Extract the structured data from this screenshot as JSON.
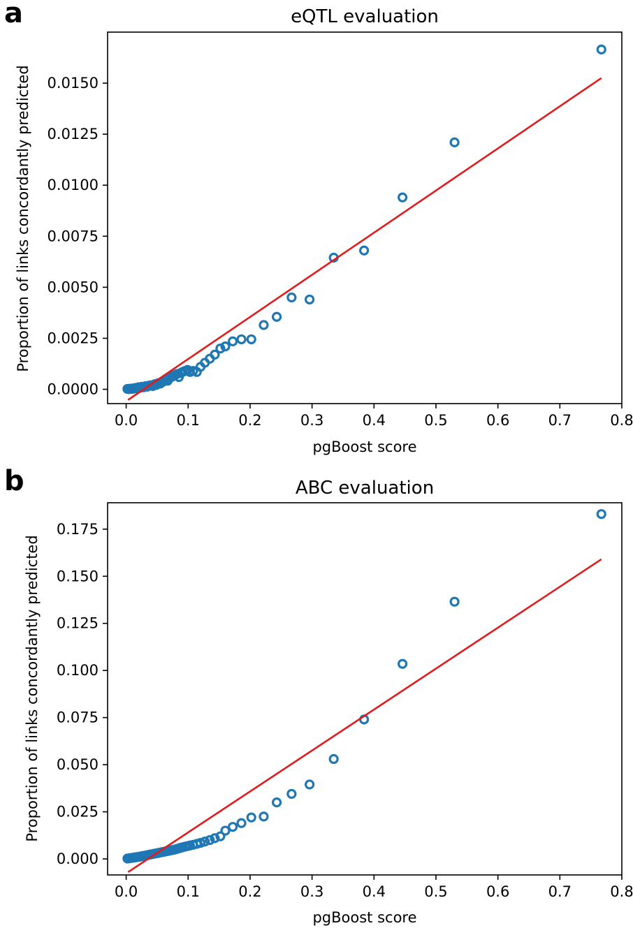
{
  "figure": {
    "panels": [
      "a",
      "b"
    ]
  },
  "chart_data": [
    {
      "type": "scatter",
      "panel_label": "a",
      "title": "eQTL evaluation",
      "xlabel": "pgBoost score",
      "ylabel": "Proportion of links concordantly predicted",
      "xlim": [
        -0.03,
        0.8
      ],
      "ylim": [
        -0.0007,
        0.0175
      ],
      "xticks": [
        0.0,
        0.1,
        0.2,
        0.3,
        0.4,
        0.5,
        0.6,
        0.7,
        0.8
      ],
      "xtick_labels": [
        "0.0",
        "0.1",
        "0.2",
        "0.3",
        "0.4",
        "0.5",
        "0.6",
        "0.7",
        "0.8"
      ],
      "yticks": [
        0.0,
        0.0025,
        0.005,
        0.0075,
        0.01,
        0.0125,
        0.015
      ],
      "ytick_labels": [
        "0.0000",
        "0.0025",
        "0.0050",
        "0.0075",
        "0.0100",
        "0.0125",
        "0.0150"
      ],
      "grid": false,
      "points": {
        "x": [
          0.002,
          0.004,
          0.006,
          0.008,
          0.01,
          0.012,
          0.014,
          0.016,
          0.018,
          0.02,
          0.022,
          0.025,
          0.028,
          0.031,
          0.034,
          0.037,
          0.04,
          0.043,
          0.046,
          0.049,
          0.052,
          0.055,
          0.058,
          0.061,
          0.064,
          0.067,
          0.07,
          0.073,
          0.076,
          0.079,
          0.082,
          0.085,
          0.088,
          0.091,
          0.095,
          0.099,
          0.103,
          0.108,
          0.114,
          0.12,
          0.127,
          0.135,
          0.143,
          0.152,
          0.16,
          0.172,
          0.186,
          0.202,
          0.222,
          0.243,
          0.267,
          0.296,
          0.335,
          0.384,
          0.446,
          0.53,
          0.767
        ],
        "y": [
          2e-05,
          1e-05,
          3e-05,
          2e-05,
          4e-05,
          3e-05,
          6e-05,
          5e-05,
          8e-05,
          0.0001,
          7e-05,
          0.00012,
          0.0001,
          0.00015,
          0.00013,
          0.00018,
          0.0002,
          0.00016,
          0.00025,
          0.00022,
          0.0003,
          0.00028,
          0.00035,
          0.0004,
          0.00045,
          0.00042,
          0.00055,
          0.0006,
          0.00065,
          0.0007,
          0.00075,
          0.0006,
          0.0008,
          0.00085,
          0.0009,
          0.00095,
          0.00085,
          0.0009,
          0.00085,
          0.0011,
          0.0013,
          0.0015,
          0.0017,
          0.002,
          0.0021,
          0.00235,
          0.00245,
          0.00245,
          0.00315,
          0.00355,
          0.0045,
          0.0044,
          0.00645,
          0.0068,
          0.0094,
          0.0121,
          0.01665
        ]
      },
      "fit_line": {
        "x": [
          0.003,
          0.767
        ],
        "y": [
          -0.00052,
          0.01525
        ]
      },
      "colors": {
        "points": "#1f77b4",
        "fit": "#e31a1c"
      }
    },
    {
      "type": "scatter",
      "panel_label": "b",
      "title": "ABC evaluation",
      "xlabel": "pgBoost score",
      "ylabel": "Proportion of links concordantly predicted",
      "xlim": [
        -0.03,
        0.8
      ],
      "ylim": [
        -0.0085,
        0.189
      ],
      "xticks": [
        0.0,
        0.1,
        0.2,
        0.3,
        0.4,
        0.5,
        0.6,
        0.7,
        0.8
      ],
      "xtick_labels": [
        "0.0",
        "0.1",
        "0.2",
        "0.3",
        "0.4",
        "0.5",
        "0.6",
        "0.7",
        "0.8"
      ],
      "yticks": [
        0.0,
        0.025,
        0.05,
        0.075,
        0.1,
        0.125,
        0.15,
        0.175
      ],
      "ytick_labels": [
        "0.000",
        "0.025",
        "0.050",
        "0.075",
        "0.100",
        "0.125",
        "0.150",
        "0.175"
      ],
      "grid": false,
      "points": {
        "x": [
          0.002,
          0.004,
          0.006,
          0.008,
          0.01,
          0.012,
          0.014,
          0.016,
          0.018,
          0.02,
          0.022,
          0.025,
          0.028,
          0.031,
          0.034,
          0.037,
          0.04,
          0.043,
          0.046,
          0.049,
          0.052,
          0.055,
          0.058,
          0.061,
          0.064,
          0.067,
          0.07,
          0.073,
          0.076,
          0.079,
          0.082,
          0.085,
          0.088,
          0.091,
          0.095,
          0.099,
          0.103,
          0.108,
          0.114,
          0.12,
          0.127,
          0.135,
          0.143,
          0.152,
          0.16,
          0.172,
          0.186,
          0.202,
          0.222,
          0.243,
          0.267,
          0.296,
          0.335,
          0.384,
          0.446,
          0.53,
          0.767
        ],
        "y": [
          0.0002,
          0.0003,
          0.0004,
          0.0005,
          0.0006,
          0.0007,
          0.0008,
          0.0009,
          0.001,
          0.0011,
          0.0012,
          0.0014,
          0.0016,
          0.0018,
          0.002,
          0.0022,
          0.0024,
          0.0026,
          0.0028,
          0.003,
          0.0032,
          0.0034,
          0.0036,
          0.0038,
          0.004,
          0.0042,
          0.0044,
          0.0046,
          0.0048,
          0.005,
          0.0053,
          0.0056,
          0.0059,
          0.0062,
          0.0065,
          0.0068,
          0.0071,
          0.0075,
          0.008,
          0.0085,
          0.0092,
          0.01,
          0.011,
          0.012,
          0.015,
          0.017,
          0.019,
          0.022,
          0.0225,
          0.03,
          0.0345,
          0.0395,
          0.053,
          0.074,
          0.1035,
          0.1365,
          0.183
        ]
      },
      "fit_line": {
        "x": [
          0.003,
          0.767
        ],
        "y": [
          -0.007,
          0.159
        ]
      },
      "colors": {
        "points": "#1f77b4",
        "fit": "#e31a1c"
      }
    }
  ]
}
